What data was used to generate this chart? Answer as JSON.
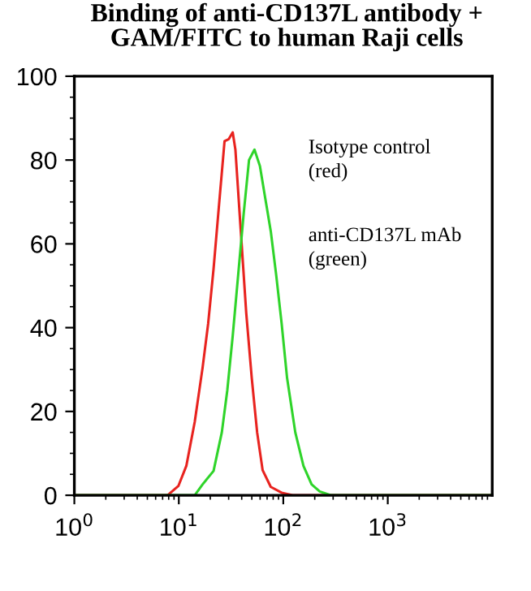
{
  "chart_data": {
    "type": "line",
    "title": "Binding of anti-CD137L antibody +\nGAM/FITC to human Raji cells",
    "log": "x",
    "xlim": [
      1,
      10000
    ],
    "xticks": [
      {
        "value": 1,
        "label": "10$^{0}$"
      },
      {
        "value": 10,
        "label": "10$^{1}$"
      },
      {
        "value": 100,
        "label": "10$^{2}$"
      },
      {
        "value": 1000,
        "label": "10$^{3}$"
      }
    ],
    "ylim": [
      0,
      100
    ],
    "yticks": [
      0,
      20,
      40,
      60,
      80,
      100
    ],
    "grid": false,
    "legend": false,
    "marker": "none",
    "line_style": "solid",
    "annotations": [
      "Isotype control\n(red)",
      "anti-CD137L mAb\n(green)"
    ],
    "series": [
      {
        "color": "#e8231f",
        "x": [
          1,
          7.8,
          9.9,
          11.8,
          14.2,
          16.9,
          19.1,
          21.5,
          24.3,
          27.4,
          30.1,
          32.8,
          34.8,
          39.2,
          44.2,
          49.9,
          56.2,
          63.4,
          75.9,
          96.4,
          122.6,
          10000
        ],
        "values": [
          0,
          0,
          2.2,
          7,
          17.5,
          30.5,
          41,
          54,
          69.5,
          84.5,
          85,
          86.6,
          82.5,
          63,
          43.5,
          28,
          15,
          6,
          2,
          0.6,
          0,
          0
        ]
      },
      {
        "color": "#2fd42a",
        "x": [
          1,
          14.2,
          16.9,
          21.5,
          25.8,
          29.1,
          32.8,
          37.0,
          41.7,
          47.0,
          53.0,
          59.7,
          67.3,
          75.9,
          85.5,
          96.4,
          108.7,
          130.3,
          156,
          186.6,
          223,
          284,
          10000
        ],
        "values": [
          0,
          0,
          2.6,
          5.8,
          15,
          25,
          38,
          52.6,
          67,
          80,
          82.5,
          78.6,
          70.8,
          63,
          52.6,
          41,
          28,
          15,
          7,
          2.6,
          0.9,
          0,
          0
        ]
      }
    ]
  }
}
